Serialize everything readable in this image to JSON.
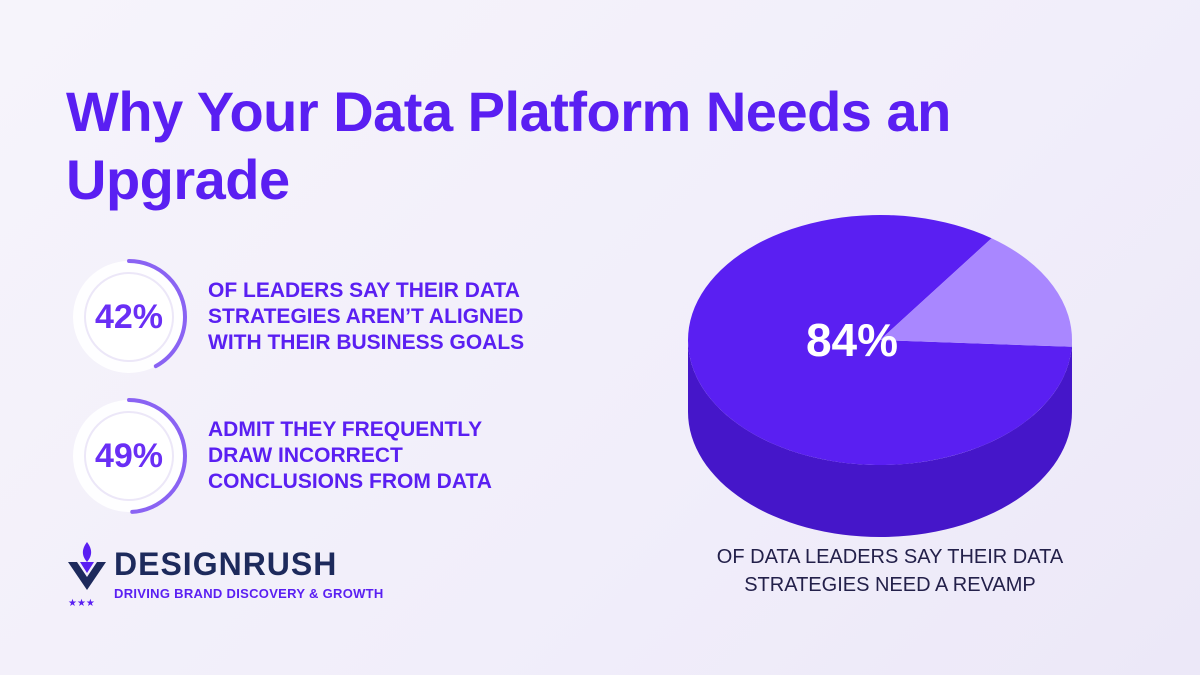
{
  "title": "Why Your Data Platform Needs an Upgrade",
  "stats": [
    {
      "value": "42%",
      "fraction": 0.42,
      "lines": [
        "OF LEADERS SAY THEIR DATA",
        "STRATEGIES AREN’T ALIGNED",
        "WITH THEIR BUSINESS GOALS"
      ]
    },
    {
      "value": "49%",
      "fraction": 0.49,
      "lines": [
        "ADMIT THEY FREQUENTLY",
        "DRAW INCORRECT",
        "CONCLUSIONS FROM DATA"
      ]
    }
  ],
  "chart_data": {
    "type": "pie",
    "slices": [
      {
        "value": 84,
        "label": "84%"
      },
      {
        "value": 16,
        "label": ""
      }
    ],
    "caption_lines": [
      "OF DATA LEADERS SAY THEIR DATA",
      "STRATEGIES NEED A REVAMP"
    ],
    "colors": {
      "main_top": "#5a1ff2",
      "main_side": "#4516c9",
      "rest_top": "#a987ff",
      "rest_side": "#8f6ef0"
    }
  },
  "brand": {
    "name": "DESIGNRUSH",
    "tagline": "DRIVING BRAND DISCOVERY & GROWTH",
    "icon": "designrush-logo-icon"
  },
  "colors": {
    "accent": "#5a1ff2",
    "navy": "#1d2a5c"
  }
}
